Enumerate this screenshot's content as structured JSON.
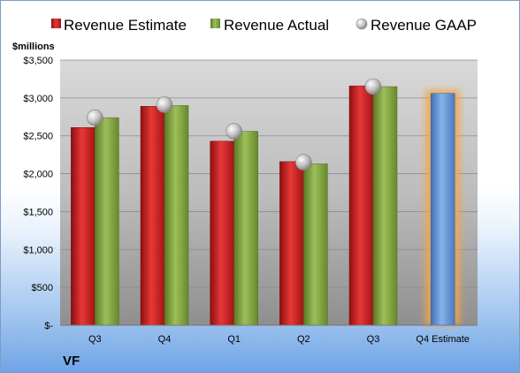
{
  "chart_data": {
    "type": "bar",
    "ylabel": "$millions",
    "company": "VF",
    "categories": [
      "Q3",
      "Q4",
      "Q1",
      "Q2",
      "Q3",
      "Q4 Estimate"
    ],
    "ylim": [
      0,
      3500
    ],
    "yticks": [
      0,
      500,
      1000,
      1500,
      2000,
      2500,
      3000,
      3500
    ],
    "ytick_labels": [
      "$-",
      "$500",
      "$1,000",
      "$1,500",
      "$2,000",
      "$2,500",
      "$3,000",
      "$3,500"
    ],
    "series": [
      {
        "name": "Revenue Estimate",
        "kind": "bar",
        "color": "#cc1f1f",
        "values": [
          2610,
          2890,
          2430,
          2160,
          3160,
          null
        ]
      },
      {
        "name": "Revenue Actual",
        "kind": "bar",
        "color": "#7fa33b",
        "values": [
          2740,
          2900,
          2560,
          2130,
          3150,
          null
        ]
      },
      {
        "name": "Revenue GAAP",
        "kind": "marker",
        "color": "#b8b8b8",
        "values": [
          2740,
          2910,
          2560,
          2150,
          3150,
          null
        ]
      },
      {
        "name": "Q4 Estimate",
        "kind": "bar",
        "color": "#5b8fd1",
        "highlight_color": "#f5a64a",
        "values": [
          null,
          null,
          null,
          null,
          null,
          3060
        ]
      }
    ],
    "legend_position": "top",
    "grid": true
  }
}
